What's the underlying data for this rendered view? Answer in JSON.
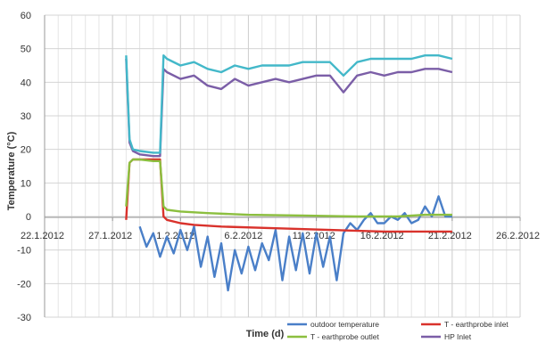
{
  "chart_data": {
    "type": "line",
    "title": "",
    "xlabel": "Time (d)",
    "ylabel": "Temperature (°C)",
    "xlim": [
      "2012-01-22",
      "2012-02-26"
    ],
    "ylim": [
      -30,
      60
    ],
    "x_ticks": [
      "22.1.2012",
      "27.1.2012",
      "1.2.2012",
      "6.2.2012",
      "11.2.2012",
      "16.2.2012",
      "21.2.2012",
      "26.2.2012"
    ],
    "y_ticks": [
      60,
      50,
      40,
      30,
      20,
      10,
      0,
      -10,
      -20,
      -30
    ],
    "grid": true,
    "legend_position": "bottom-right",
    "series": [
      {
        "name": "outdoor temperature",
        "color": "#4a7fc8",
        "points": [
          [
            "2012-01-29",
            -3
          ],
          [
            "2012-01-29 12:00",
            -9
          ],
          [
            "2012-01-30",
            -5
          ],
          [
            "2012-01-30 12:00",
            -12
          ],
          [
            "2012-01-31",
            -6
          ],
          [
            "2012-01-31 12:00",
            -11
          ],
          [
            "2012-02-01",
            -4
          ],
          [
            "2012-02-01 12:00",
            -10
          ],
          [
            "2012-02-02",
            -3
          ],
          [
            "2012-02-02 12:00",
            -15
          ],
          [
            "2012-02-03",
            -6
          ],
          [
            "2012-02-03 12:00",
            -18
          ],
          [
            "2012-02-04",
            -8
          ],
          [
            "2012-02-04 12:00",
            -22
          ],
          [
            "2012-02-05",
            -10
          ],
          [
            "2012-02-05 12:00",
            -17
          ],
          [
            "2012-02-06",
            -9
          ],
          [
            "2012-02-06 12:00",
            -16
          ],
          [
            "2012-02-07",
            -8
          ],
          [
            "2012-02-07 12:00",
            -13
          ],
          [
            "2012-02-08",
            -4
          ],
          [
            "2012-02-08 12:00",
            -19
          ],
          [
            "2012-02-09",
            -6
          ],
          [
            "2012-02-09 12:00",
            -16
          ],
          [
            "2012-02-10",
            -5
          ],
          [
            "2012-02-10 12:00",
            -17
          ],
          [
            "2012-02-11",
            -5
          ],
          [
            "2012-02-11 12:00",
            -15
          ],
          [
            "2012-02-12",
            -6
          ],
          [
            "2012-02-12 12:00",
            -19
          ],
          [
            "2012-02-13",
            -5
          ],
          [
            "2012-02-13 12:00",
            -2
          ],
          [
            "2012-02-14",
            -4
          ],
          [
            "2012-02-14 12:00",
            -1
          ],
          [
            "2012-02-15",
            1
          ],
          [
            "2012-02-15 12:00",
            -2
          ],
          [
            "2012-02-16",
            -2
          ],
          [
            "2012-02-16 12:00",
            0
          ],
          [
            "2012-02-17",
            -1
          ],
          [
            "2012-02-17 12:00",
            1
          ],
          [
            "2012-02-18",
            -2
          ],
          [
            "2012-02-18 12:00",
            -1
          ],
          [
            "2012-02-19",
            3
          ],
          [
            "2012-02-19 12:00",
            0
          ],
          [
            "2012-02-20",
            6
          ],
          [
            "2012-02-20 12:00",
            0
          ],
          [
            "2012-02-21",
            0
          ]
        ]
      },
      {
        "name": "T - earthprobe inlet",
        "color": "#d9322c",
        "points": [
          [
            "2012-01-28",
            -1
          ],
          [
            "2012-01-28 06:00",
            16
          ],
          [
            "2012-01-28 12:00",
            17
          ],
          [
            "2012-01-29",
            17
          ],
          [
            "2012-01-30",
            17
          ],
          [
            "2012-01-30 12:00",
            17
          ],
          [
            "2012-01-30 18:00",
            0
          ],
          [
            "2012-01-31",
            -1
          ],
          [
            "2012-02-01",
            -2
          ],
          [
            "2012-02-02",
            -2.5
          ],
          [
            "2012-02-04",
            -3
          ],
          [
            "2012-02-08",
            -3.5
          ],
          [
            "2012-02-12",
            -4
          ],
          [
            "2012-02-16",
            -4.5
          ],
          [
            "2012-02-21",
            -4.5
          ]
        ]
      },
      {
        "name": "T - earthprobe outlet",
        "color": "#8cbf3f",
        "points": [
          [
            "2012-01-28",
            3
          ],
          [
            "2012-01-28 06:00",
            16
          ],
          [
            "2012-01-28 12:00",
            17
          ],
          [
            "2012-01-29",
            17
          ],
          [
            "2012-01-30",
            16.5
          ],
          [
            "2012-01-30 12:00",
            16.5
          ],
          [
            "2012-01-30 18:00",
            3
          ],
          [
            "2012-01-31",
            2
          ],
          [
            "2012-02-01",
            1.5
          ],
          [
            "2012-02-03",
            1
          ],
          [
            "2012-02-06",
            0.5
          ],
          [
            "2012-02-10",
            0.3
          ],
          [
            "2012-02-14",
            0
          ],
          [
            "2012-02-17",
            0
          ],
          [
            "2012-02-19",
            0.5
          ],
          [
            "2012-02-21",
            0.5
          ]
        ]
      },
      {
        "name": "HP Inlet",
        "color": "#7b5ea7",
        "points": [
          [
            "2012-01-28",
            47
          ],
          [
            "2012-01-28 06:00",
            22
          ],
          [
            "2012-01-28 12:00",
            19.5
          ],
          [
            "2012-01-29",
            18.5
          ],
          [
            "2012-01-30",
            18
          ],
          [
            "2012-01-30 12:00",
            18
          ],
          [
            "2012-01-30 18:00",
            44
          ],
          [
            "2012-01-31",
            43
          ],
          [
            "2012-02-01",
            41
          ],
          [
            "2012-02-02",
            42
          ],
          [
            "2012-02-03",
            39
          ],
          [
            "2012-02-04",
            38
          ],
          [
            "2012-02-05",
            41
          ],
          [
            "2012-02-06",
            39
          ],
          [
            "2012-02-07",
            40
          ],
          [
            "2012-02-08",
            41
          ],
          [
            "2012-02-09",
            40
          ],
          [
            "2012-02-10",
            41
          ],
          [
            "2012-02-11",
            42
          ],
          [
            "2012-02-12",
            42
          ],
          [
            "2012-02-13",
            37
          ],
          [
            "2012-02-14",
            42
          ],
          [
            "2012-02-15",
            43
          ],
          [
            "2012-02-16",
            42
          ],
          [
            "2012-02-17",
            43
          ],
          [
            "2012-02-18",
            43
          ],
          [
            "2012-02-19",
            44
          ],
          [
            "2012-02-20",
            44
          ],
          [
            "2012-02-21",
            43
          ]
        ]
      },
      {
        "name": "",
        "color": "#43b8c9",
        "points": [
          [
            "2012-01-28",
            48
          ],
          [
            "2012-01-28 06:00",
            23
          ],
          [
            "2012-01-28 12:00",
            20
          ],
          [
            "2012-01-29",
            19.5
          ],
          [
            "2012-01-30",
            19
          ],
          [
            "2012-01-30 12:00",
            19
          ],
          [
            "2012-01-30 18:00",
            48
          ],
          [
            "2012-01-31",
            47
          ],
          [
            "2012-02-01",
            45
          ],
          [
            "2012-02-02",
            46
          ],
          [
            "2012-02-03",
            44
          ],
          [
            "2012-02-04",
            43
          ],
          [
            "2012-02-05",
            45
          ],
          [
            "2012-02-06",
            44
          ],
          [
            "2012-02-07",
            45
          ],
          [
            "2012-02-08",
            45
          ],
          [
            "2012-02-09",
            45
          ],
          [
            "2012-02-10",
            46
          ],
          [
            "2012-02-11",
            46
          ],
          [
            "2012-02-12",
            46
          ],
          [
            "2012-02-13",
            42
          ],
          [
            "2012-02-14",
            46
          ],
          [
            "2012-02-15",
            47
          ],
          [
            "2012-02-16",
            47
          ],
          [
            "2012-02-17",
            47
          ],
          [
            "2012-02-18",
            47
          ],
          [
            "2012-02-19",
            48
          ],
          [
            "2012-02-20",
            48
          ],
          [
            "2012-02-21",
            47
          ]
        ]
      }
    ]
  }
}
